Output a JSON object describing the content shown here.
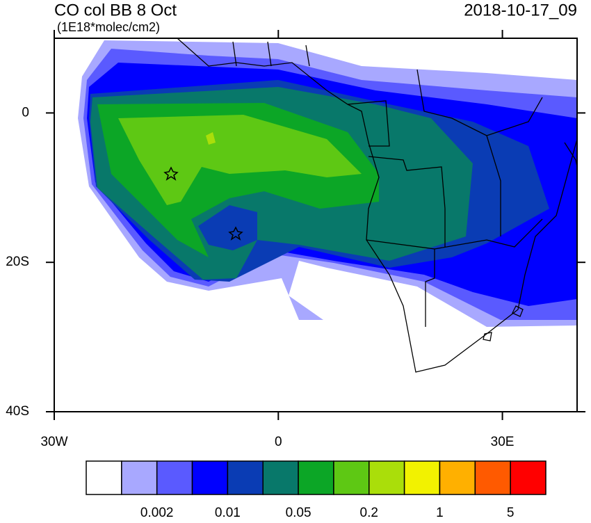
{
  "header": {
    "title": "CO col BB 8 Oct",
    "units": "(1E18*molec/cm2)",
    "date": "2018-10-17_09"
  },
  "map": {
    "lonlim": [
      -30,
      40
    ],
    "latlim": [
      -40,
      10
    ],
    "lon_ticks": [
      {
        "value": -30,
        "label": "30W"
      },
      {
        "value": 0,
        "label": "0"
      },
      {
        "value": 30,
        "label": "30E"
      }
    ],
    "lat_ticks": [
      {
        "value": 0,
        "label": "0"
      },
      {
        "value": -20,
        "label": "20S"
      },
      {
        "value": -40,
        "label": "40S"
      }
    ]
  },
  "colorbar": {
    "colors": [
      "#ffffff",
      "#a8a8ff",
      "#5a5aff",
      "#0000ff",
      "#0a3cb4",
      "#08786a",
      "#0ca626",
      "#5ec814",
      "#aade0a",
      "#f2f200",
      "#ffb000",
      "#ff5a00",
      "#ff0000"
    ],
    "levels": [
      null,
      0.002,
      null,
      0.01,
      null,
      0.05,
      null,
      0.2,
      null,
      1,
      null,
      5
    ]
  }
}
